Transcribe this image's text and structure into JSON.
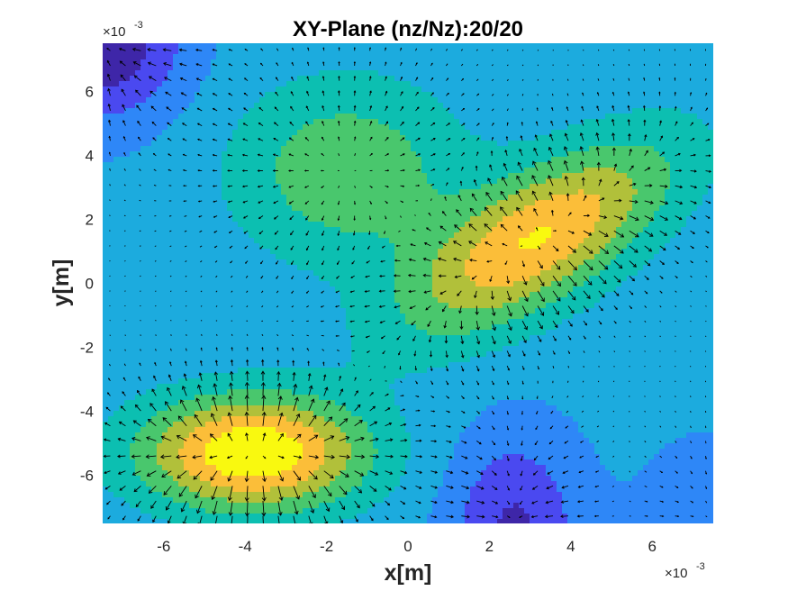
{
  "chart_data": {
    "type": "contour",
    "title": "XY-Plane (nz/Nz):20/20",
    "xlabel": "x[m]",
    "ylabel": "y[m]",
    "x_multiplier": "×10",
    "x_exponent": "-3",
    "y_multiplier": "×10",
    "y_exponent": "-3",
    "xlim": [
      -7.5,
      7.5
    ],
    "ylim": [
      -7.5,
      7.5
    ],
    "x_ticks": [
      "-6",
      "-4",
      "-2",
      "0",
      "2",
      "4",
      "6"
    ],
    "x_tick_values": [
      -6,
      -4,
      -2,
      0,
      2,
      4,
      6
    ],
    "y_ticks": [
      "6",
      "4",
      "2",
      "0",
      "-2",
      "-4",
      "-6"
    ],
    "y_tick_values": [
      6,
      4,
      2,
      0,
      -2,
      -4,
      -6
    ],
    "field_peaks": [
      {
        "x": -3.8,
        "y": -5.4,
        "level": "max"
      },
      {
        "x": 3.2,
        "y": 1.5,
        "level": "high"
      }
    ],
    "field_minima": [
      {
        "x": -7.5,
        "y": 7.5
      },
      {
        "x": 2.5,
        "y": -7.5
      }
    ],
    "contour_levels": 8,
    "colormap": [
      "#3e26a8",
      "#4a49f0",
      "#2e87f7",
      "#1cabde",
      "#0cbfb1",
      "#49c76d",
      "#b1c03a",
      "#fbbe39",
      "#f9f90f"
    ],
    "arrow_color": "#000000",
    "contour_line_color": "#000000",
    "quiver": true
  }
}
